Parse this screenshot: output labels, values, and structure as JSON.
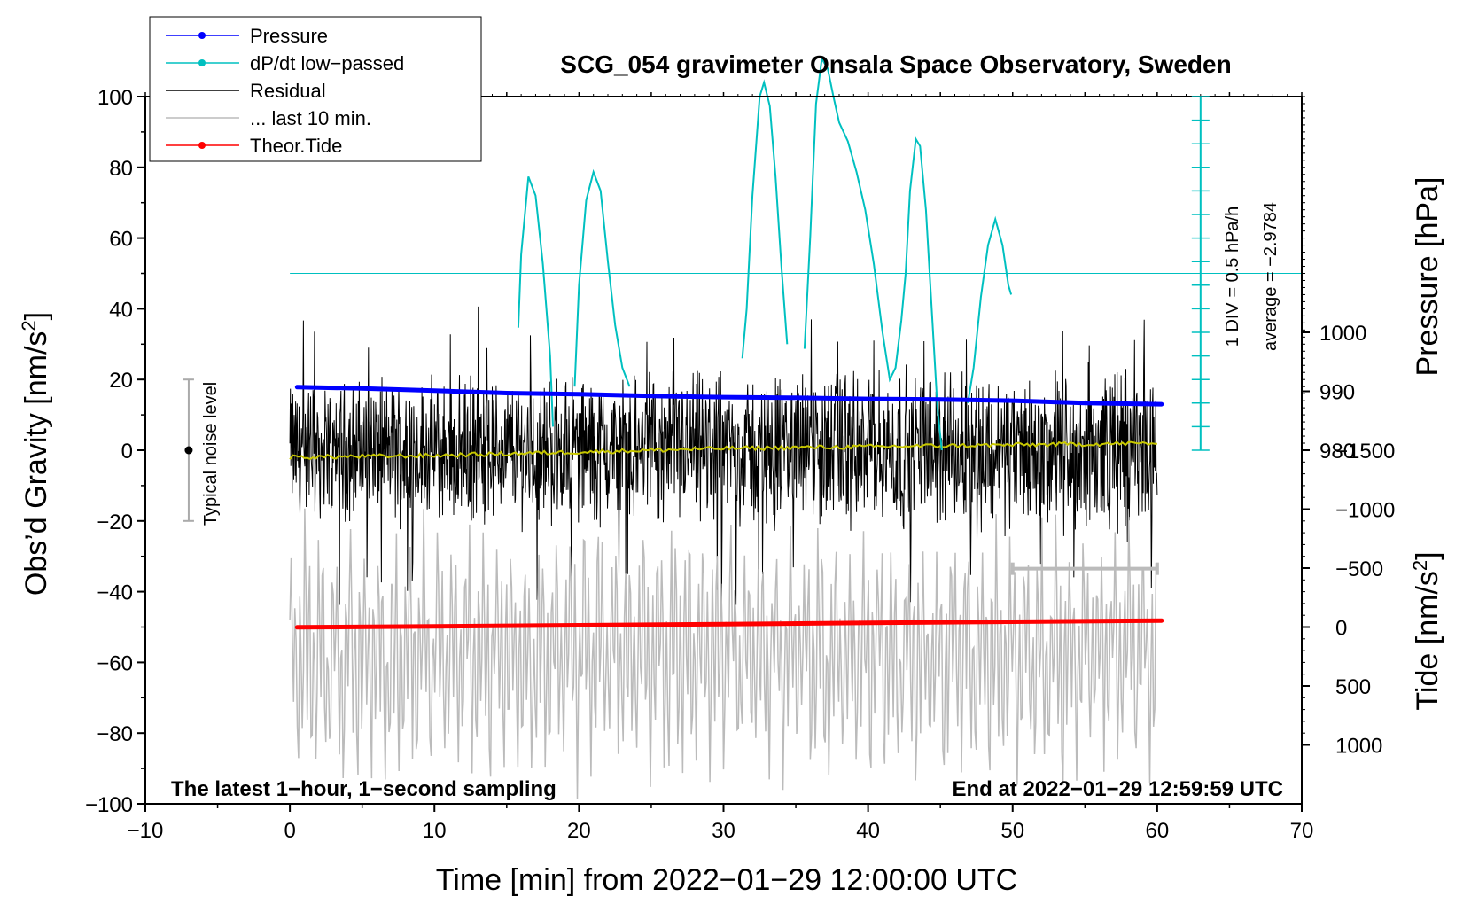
{
  "chart_data": {
    "type": "line",
    "title": "SCG_054 gravimeter Onsala Space Observatory, Sweden",
    "xlabel": "Time [min] from 2022−01−29 12:00:00 UTC",
    "ylabel_left": "Obs’d Gravity [nm/s",
    "ylabel_left_sup": "2",
    "ylabel_left_close": "]",
    "ylabel_pressure": "Pressure [hPa]",
    "ylabel_tide": "Tide [nm/s",
    "ylabel_tide_sup": "2",
    "ylabel_tide_close": "]",
    "xlim": [
      -10,
      70
    ],
    "ylim": [
      -100,
      100
    ],
    "x_ticks": [
      "−10",
      "0",
      "10",
      "20",
      "30",
      "40",
      "50",
      "60",
      "70"
    ],
    "y_ticks": [
      "−100",
      "−80",
      "−60",
      "−40",
      "−20",
      "0",
      "20",
      "40",
      "60",
      "80",
      "100"
    ],
    "pressure_ticks": [
      "980",
      "990",
      "1000"
    ],
    "tide_ticks": [
      "−1500",
      "−1000",
      "−500",
      "0",
      "500",
      "1000"
    ],
    "corner_left": "The latest 1−hour, 1−second sampling",
    "corner_right": "End at 2022−01−29 12:59:59 UTC",
    "noise_label": "Typical noise level",
    "dpdt_scale": "1 DIV = 0.5 hPa/h",
    "dpdt_average": "average = −2.9784",
    "legend": [
      {
        "label": "Pressure",
        "color": "#0000ff",
        "marker": true
      },
      {
        "label": "dP/dt low−passed",
        "color": "#00c0c0",
        "marker": true
      },
      {
        "label": "Residual",
        "color": "#000000",
        "marker": false
      },
      {
        "label": "... last 10 min.",
        "color": "#bbbbbb",
        "marker": false
      },
      {
        "label": "Theor.Tide",
        "color": "#ff0000",
        "marker": true
      }
    ],
    "series": [
      {
        "name": "Pressure",
        "axis": "pressure_hPa",
        "color": "#0000ff",
        "x": [
          0.5,
          5,
          10,
          15,
          20,
          25,
          30,
          35,
          40,
          45,
          50,
          55,
          60.3
        ],
        "values": [
          990.7,
          990.5,
          990.1,
          989.7,
          989.5,
          989.2,
          989.0,
          988.9,
          988.7,
          988.6,
          988.4,
          988.0,
          987.8
        ]
      },
      {
        "name": "dP/dt low-passed",
        "axis": "dpdt_div",
        "color": "#00c0c0",
        "segments": [
          {
            "x": [
              15.8,
              16.0,
              16.5,
              17.0,
              17.5,
              18.0,
              18.2
            ],
            "values": [
              -2.3,
              0.8,
              4.1,
              3.3,
              0.4,
              -3.5,
              -6.5
            ]
          },
          {
            "x": [
              19.7,
              20.0,
              20.5,
              21.0,
              21.5,
              22.0,
              22.5,
              23.0,
              23.5
            ],
            "values": [
              -4.8,
              -0.5,
              3.1,
              4.3,
              3.5,
              0.5,
              -2.2,
              -4.0,
              -4.8
            ]
          },
          {
            "x": [
              31.3,
              31.6,
              32.0,
              32.5,
              32.8,
              33.2,
              33.6,
              34.0,
              34.4
            ],
            "values": [
              -3.6,
              -1.5,
              3.3,
              7.5,
              8.1,
              7.1,
              4.1,
              0.3,
              -3.0
            ]
          },
          {
            "x": [
              35.6,
              36.0,
              36.4,
              36.8,
              37.2,
              37.6,
              38.0,
              38.6,
              39.2,
              39.8,
              40.4,
              41.0,
              41.5,
              41.9,
              42.3,
              42.6
            ],
            "values": [
              -3.2,
              1.6,
              7.2,
              9.1,
              8.7,
              7.5,
              6.4,
              5.6,
              4.3,
              2.7,
              0.4,
              -2.5,
              -4.5,
              -4.0,
              -2.0,
              0.0
            ]
          },
          {
            "x": [
              42.6,
              42.9,
              43.3,
              43.6,
              44.0,
              44.4,
              44.8,
              45.1
            ],
            "values": [
              0.0,
              3.5,
              5.7,
              5.4,
              2.7,
              -1.5,
              -5.7,
              -7.5
            ]
          },
          {
            "x": [
              46.9,
              47.3,
              47.8,
              48.3,
              48.8,
              49.3,
              49.7,
              49.9
            ],
            "values": [
              -5.5,
              -4.0,
              -1.0,
              1.2,
              2.3,
              1.2,
              -0.5,
              -0.9
            ]
          }
        ]
      },
      {
        "name": "Residual",
        "axis": "gravity",
        "color": "#000000",
        "x": [
          0,
          60
        ],
        "envelope_min": [
          -20,
          -25
        ],
        "envelope_max": [
          20,
          25
        ],
        "peak_max": 41,
        "peak_min": -44
      },
      {
        "name": "Residual smoothed",
        "axis": "gravity",
        "color": "#c8c800",
        "x": [
          0,
          10,
          20,
          30,
          40,
          50,
          60
        ],
        "values": [
          -2,
          -1.5,
          -0.5,
          0.5,
          1,
          1.5,
          2
        ]
      },
      {
        "name": "... last 10 min.",
        "axis": "gravity",
        "color": "#bbbbbb",
        "x": [
          50,
          60
        ],
        "range": [
          -98,
          -17
        ]
      },
      {
        "name": "Theor.Tide",
        "axis": "tide",
        "color": "#ff0000",
        "x": [
          0.5,
          10,
          20,
          30,
          40,
          50,
          60.3
        ],
        "values": [
          2,
          -5,
          -15,
          -25,
          -35,
          -45,
          -55
        ]
      }
    ],
    "noise_bar": {
      "x": -7,
      "center": 0,
      "low": -20,
      "high": 20
    },
    "last10_bracket": {
      "x_start": 50,
      "x_end": 60,
      "y": -33.5
    }
  }
}
